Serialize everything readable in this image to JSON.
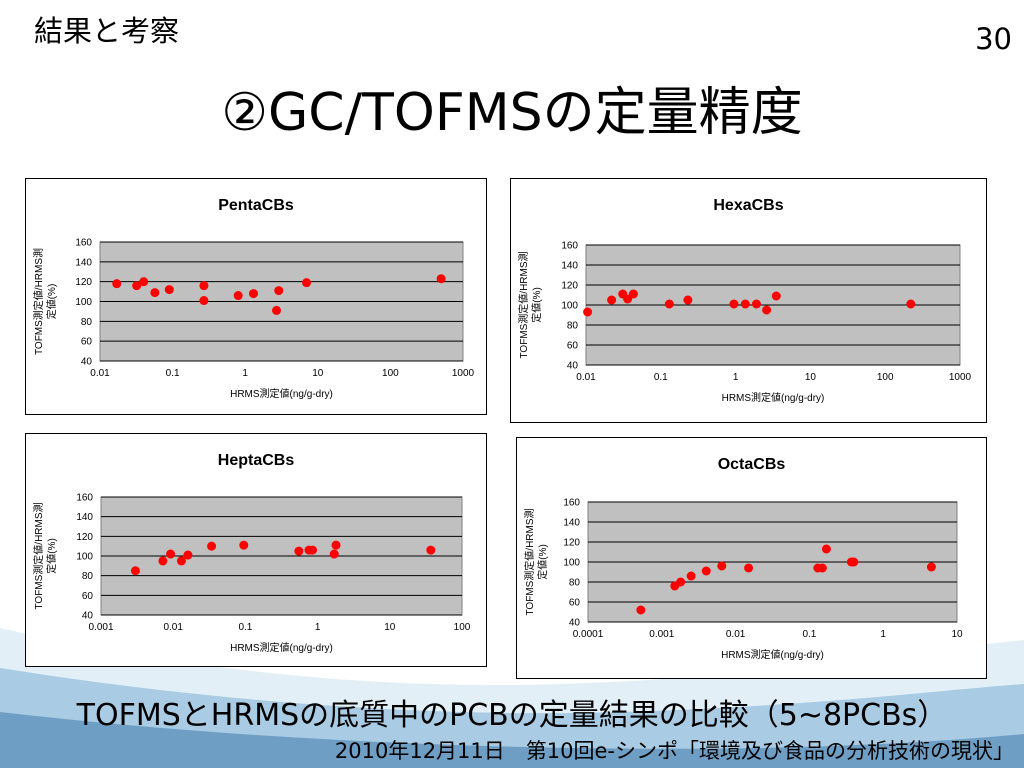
{
  "header": {
    "section_label": "結果と考察",
    "page_number": "30",
    "title": "②GC/TOFMSの定量精度"
  },
  "caption": "TOFMSとHRMSの底質中のPCBの定量結果の比較（5~8PCBs）",
  "footer": "2010年12月11日　第10回e-シンポ「環境及び食品の分析技術の現状」",
  "colors": {
    "plot_bg": "#c0c0c0",
    "marker": "#ff0000",
    "wave_light": "#e3eff7",
    "wave_mid": "#a9cbe3",
    "wave_dark": "#6f9ec4"
  },
  "chart_data": [
    {
      "type": "scatter",
      "title": "PentaCBs",
      "xlabel": "HRMS測定値(ng/g-dry)",
      "ylabel": [
        "TOFMS測定値/HRMS測",
        "定値(%)"
      ],
      "xscale": "log",
      "xlim": [
        0.01,
        1000
      ],
      "ylim": [
        40,
        160
      ],
      "x_ticks": [
        "0.01",
        "0.1",
        "1",
        "10",
        "100",
        "1000"
      ],
      "y_ticks": [
        "40",
        "60",
        "80",
        "100",
        "120",
        "140",
        "160"
      ],
      "grid": true,
      "series": [
        {
          "points": [
            [
              0.017,
              118
            ],
            [
              0.032,
              116
            ],
            [
              0.04,
              120
            ],
            [
              0.057,
              109
            ],
            [
              0.09,
              112
            ],
            [
              0.27,
              116
            ],
            [
              0.27,
              101
            ],
            [
              0.8,
              106
            ],
            [
              1.3,
              108
            ],
            [
              2.7,
              91
            ],
            [
              2.9,
              111
            ],
            [
              7,
              119
            ],
            [
              500,
              123
            ]
          ]
        }
      ]
    },
    {
      "type": "scatter",
      "title": "HexaCBs",
      "xlabel": "HRMS測定値(ng/g-dry)",
      "ylabel": [
        "TOFMS測定値/HRMS測",
        "定値(%)"
      ],
      "xscale": "log",
      "xlim": [
        0.01,
        1000
      ],
      "ylim": [
        40,
        160
      ],
      "x_ticks": [
        "0.01",
        "0.1",
        "1",
        "10",
        "100",
        "1000"
      ],
      "y_ticks": [
        "40",
        "60",
        "80",
        "100",
        "120",
        "140",
        "160"
      ],
      "grid": true,
      "series": [
        {
          "points": [
            [
              0.0105,
              93
            ],
            [
              0.022,
              105
            ],
            [
              0.031,
              111
            ],
            [
              0.036,
              106
            ],
            [
              0.043,
              111
            ],
            [
              0.13,
              101
            ],
            [
              0.23,
              105
            ],
            [
              0.95,
              101
            ],
            [
              1.35,
              101
            ],
            [
              1.9,
              101
            ],
            [
              2.6,
              95
            ],
            [
              3.5,
              109
            ],
            [
              220,
              101
            ]
          ]
        }
      ]
    },
    {
      "type": "scatter",
      "title": "HeptaCBs",
      "xlabel": "HRMS測定値(ng/g-dry)",
      "ylabel": [
        "TOFMS測定値/HRMS測",
        "定値(%)"
      ],
      "xscale": "log",
      "xlim": [
        0.001,
        100
      ],
      "ylim": [
        40,
        160
      ],
      "x_ticks": [
        "0.001",
        "0.01",
        "0.1",
        "1",
        "10",
        "100"
      ],
      "y_ticks": [
        "40",
        "60",
        "80",
        "100",
        "120",
        "140",
        "160"
      ],
      "grid": true,
      "series": [
        {
          "points": [
            [
              0.003,
              85
            ],
            [
              0.0072,
              95
            ],
            [
              0.0092,
              102
            ],
            [
              0.013,
              95
            ],
            [
              0.016,
              101
            ],
            [
              0.034,
              110
            ],
            [
              0.095,
              111
            ],
            [
              0.55,
              105
            ],
            [
              0.76,
              106
            ],
            [
              0.85,
              106
            ],
            [
              1.7,
              102
            ],
            [
              1.8,
              111
            ],
            [
              37,
              106
            ]
          ]
        }
      ]
    },
    {
      "type": "scatter",
      "title": "OctaCBs",
      "xlabel": "HRMS測定値(ng/g-dry)",
      "ylabel": [
        "TOFMS測定値/HRMS測",
        "定値(%)"
      ],
      "xscale": "log",
      "xlim": [
        0.0001,
        10
      ],
      "ylim": [
        40,
        160
      ],
      "x_ticks": [
        "0.0001",
        "0.001",
        "0.01",
        "0.1",
        "1",
        "10"
      ],
      "y_ticks": [
        "40",
        "60",
        "80",
        "100",
        "120",
        "140",
        "160"
      ],
      "grid": true,
      "series": [
        {
          "points": [
            [
              0.00052,
              52
            ],
            [
              0.0015,
              76
            ],
            [
              0.0018,
              80
            ],
            [
              0.0025,
              86
            ],
            [
              0.004,
              91
            ],
            [
              0.0065,
              96
            ],
            [
              0.015,
              94
            ],
            [
              0.13,
              94
            ],
            [
              0.15,
              94
            ],
            [
              0.17,
              113
            ],
            [
              0.37,
              100
            ],
            [
              0.4,
              100
            ],
            [
              4.5,
              95
            ]
          ]
        }
      ]
    }
  ]
}
